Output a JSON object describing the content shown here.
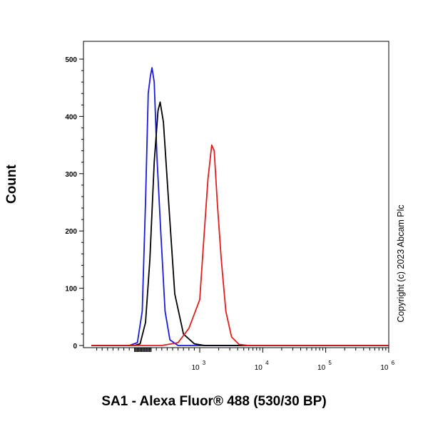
{
  "chart_data": {
    "type": "line",
    "xlabel": "SA1 - Alexa Fluor® 488 (530/30 BP)",
    "ylabel": "Count",
    "annotation": "Copyright (c) 2023 Abcam Plc",
    "x_scale": "biexponential",
    "xlim": [
      -1000,
      1000000
    ],
    "ylim": [
      0,
      530
    ],
    "y_ticks": [
      0,
      100,
      200,
      300,
      400,
      500
    ],
    "x_ticks": [
      {
        "value": 1000,
        "base": "10",
        "exp": "3"
      },
      {
        "value": 10000,
        "base": "10",
        "exp": "4"
      },
      {
        "value": 100000,
        "base": "10",
        "exp": "5"
      },
      {
        "value": 1000000,
        "base": "10",
        "exp": "6"
      }
    ],
    "grid": false,
    "series": [
      {
        "color": "#1a1adb",
        "points": [
          [
            -1000,
            0
          ],
          [
            -300,
            0
          ],
          [
            -150,
            5
          ],
          [
            -60,
            60
          ],
          [
            0,
            250
          ],
          [
            50,
            440
          ],
          [
            90,
            470
          ],
          [
            120,
            485
          ],
          [
            160,
            460
          ],
          [
            210,
            330
          ],
          [
            280,
            200
          ],
          [
            360,
            60
          ],
          [
            450,
            10
          ],
          [
            600,
            0
          ],
          [
            1000,
            0
          ],
          [
            1000000,
            0
          ]
        ]
      },
      {
        "color": "#000000",
        "points": [
          [
            -1000,
            0
          ],
          [
            -200,
            0
          ],
          [
            -100,
            3
          ],
          [
            0,
            40
          ],
          [
            80,
            150
          ],
          [
            160,
            320
          ],
          [
            230,
            410
          ],
          [
            270,
            425
          ],
          [
            330,
            390
          ],
          [
            420,
            260
          ],
          [
            540,
            90
          ],
          [
            700,
            20
          ],
          [
            900,
            3
          ],
          [
            1200,
            0
          ],
          [
            1000000,
            0
          ]
        ]
      },
      {
        "color": "#e01e1e",
        "points": [
          [
            -1000,
            0
          ],
          [
            300,
            0
          ],
          [
            600,
            5
          ],
          [
            800,
            30
          ],
          [
            1000,
            80
          ],
          [
            1150,
            180
          ],
          [
            1350,
            290
          ],
          [
            1550,
            350
          ],
          [
            1700,
            340
          ],
          [
            1900,
            250
          ],
          [
            2200,
            150
          ],
          [
            2600,
            60
          ],
          [
            3200,
            15
          ],
          [
            4200,
            2
          ],
          [
            6000,
            0
          ],
          [
            1000000,
            0
          ]
        ]
      }
    ]
  }
}
